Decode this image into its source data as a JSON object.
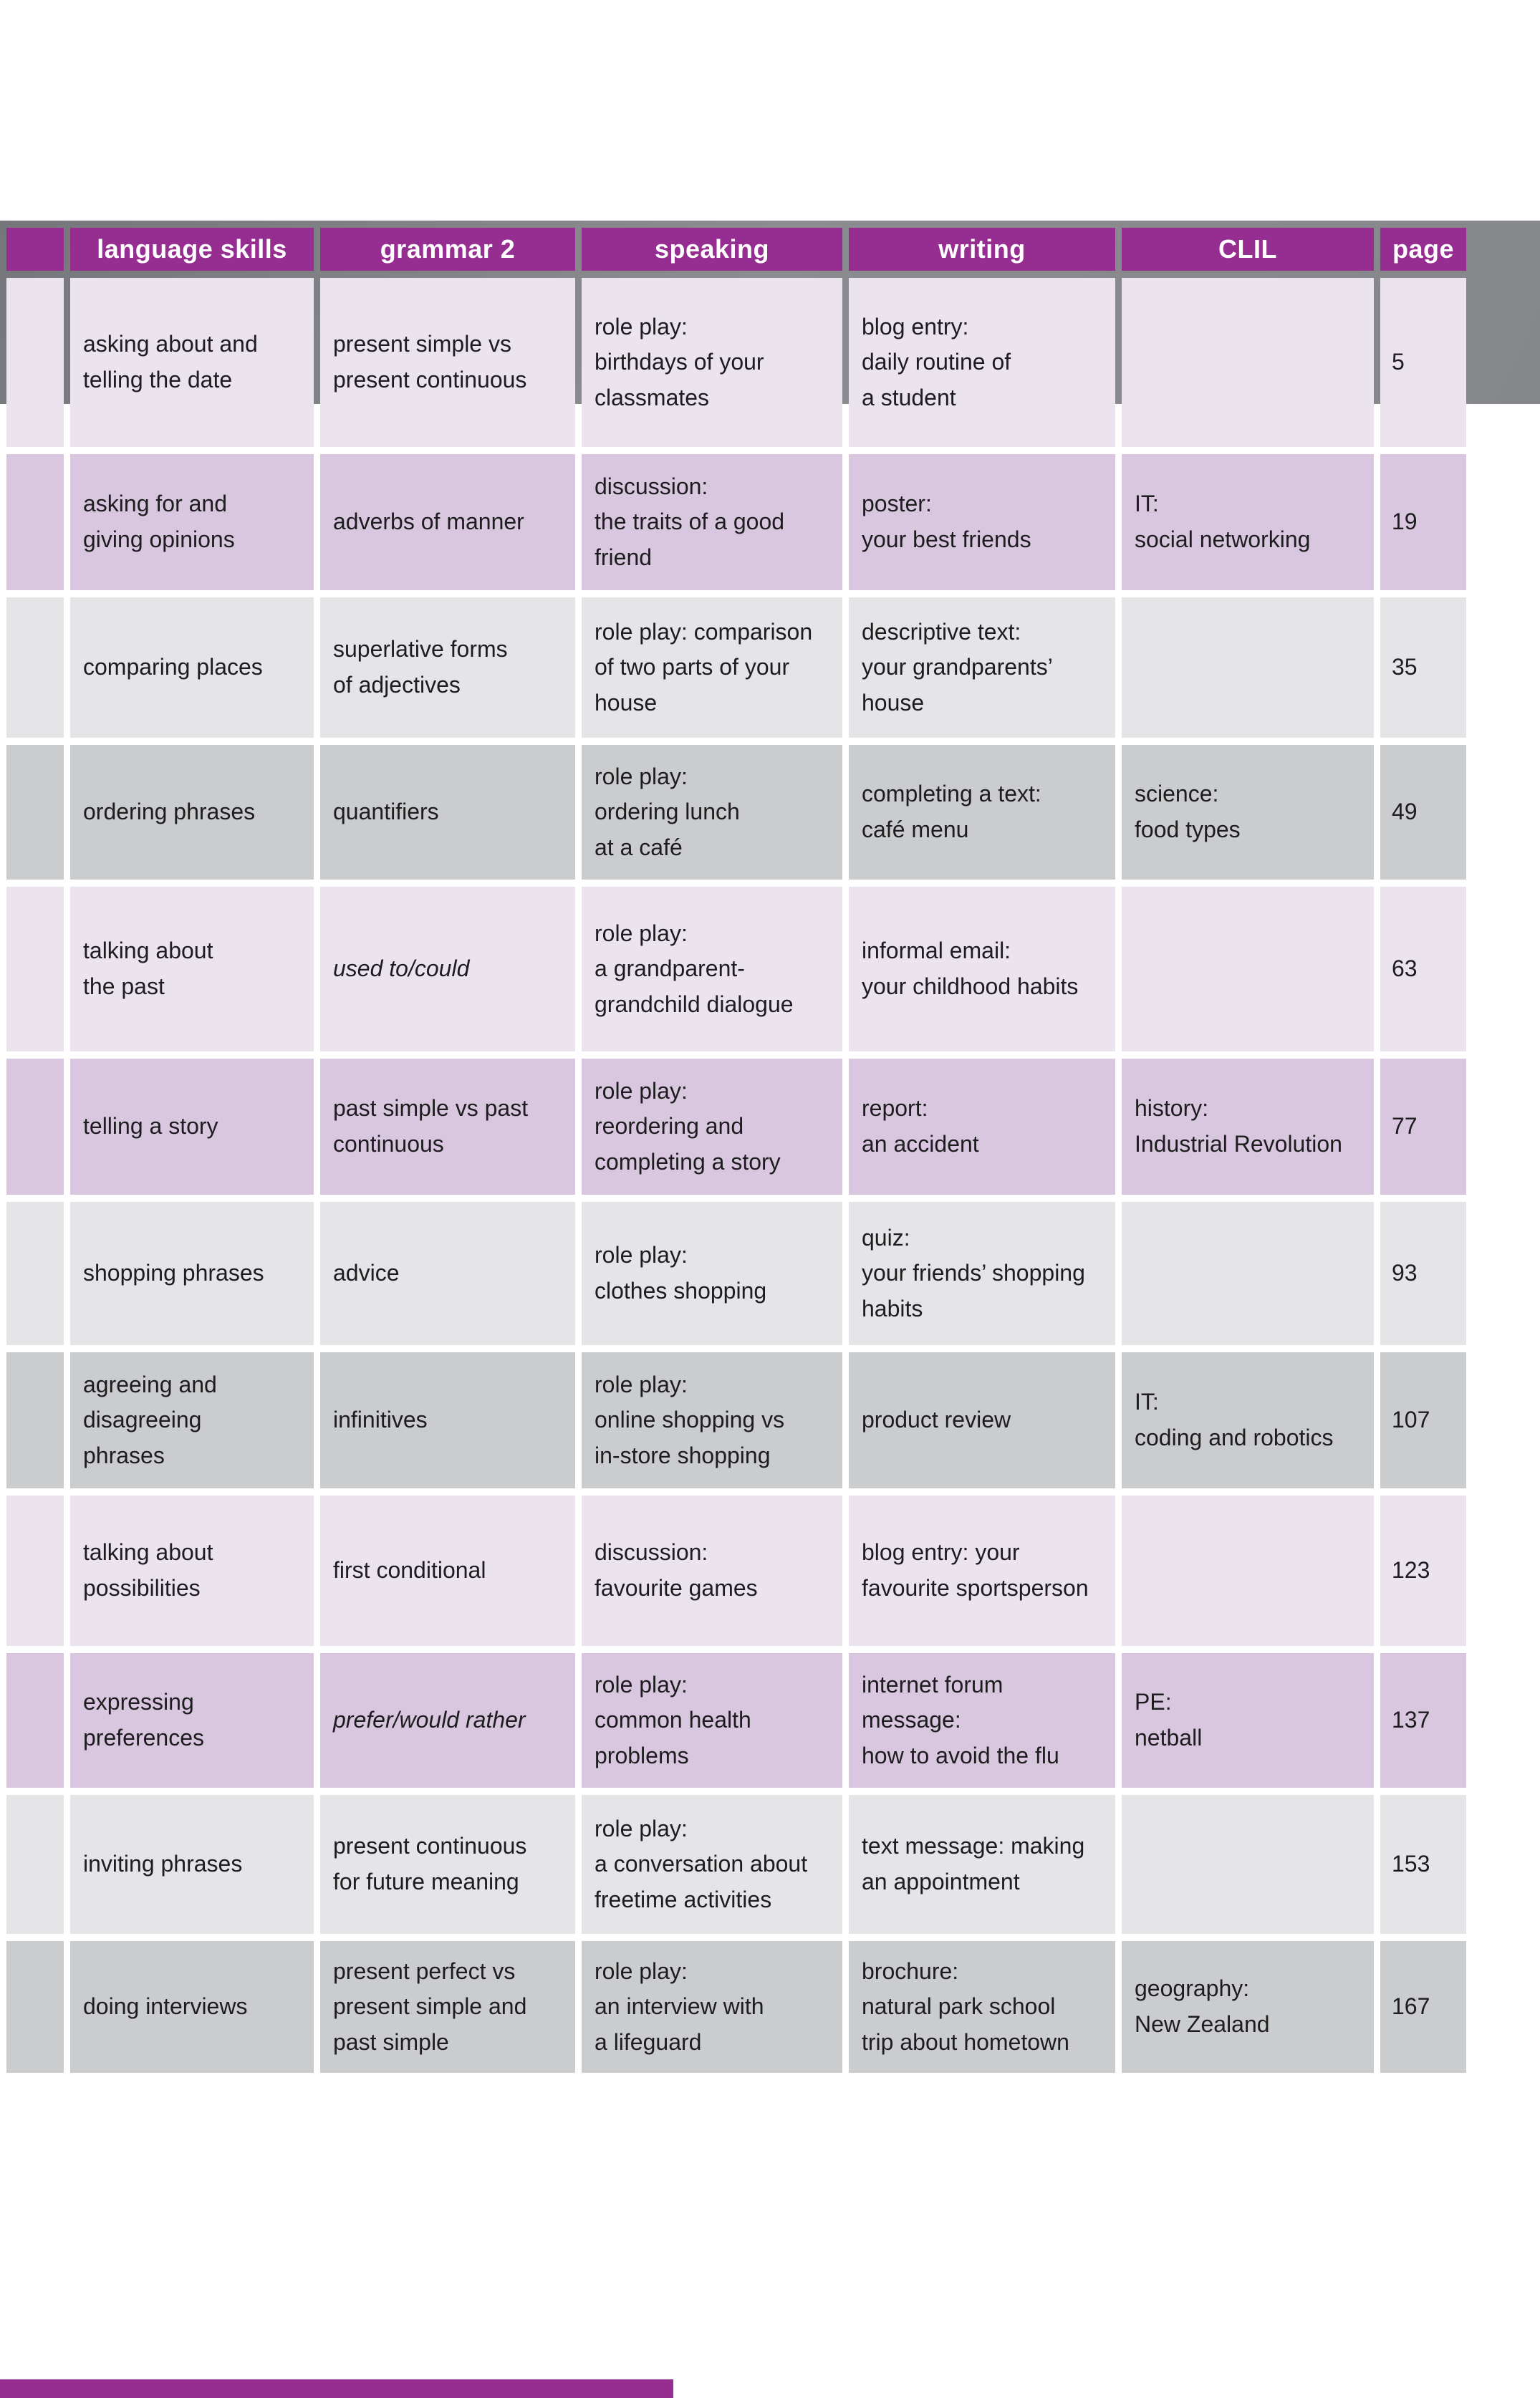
{
  "colors": {
    "header_bg": "#962d90",
    "header_text": "#ffffff",
    "row_lavender_light": "#ebe3ee",
    "row_lavender_dark": "#d9c7e0",
    "row_gray_light": "#e5e5e7",
    "row_gray_dark": "#cbcccd",
    "banner_gray": "#85878b",
    "accent_bar": "#962d90",
    "cell_text": "#1d1d1f"
  },
  "header": {
    "columns": [
      "language skills",
      "grammar 2",
      "speaking",
      "writing",
      "CLIL",
      "page"
    ]
  },
  "rows": [
    {
      "language_skills": "asking about and\ntelling the date",
      "grammar_2": "present simple vs\npresent continuous",
      "grammar_2_italic": false,
      "speaking": "role play:\nbirthdays of your\nclassmates",
      "writing": "blog entry:\ndaily routine of\na student",
      "clil": "",
      "page": "5"
    },
    {
      "language_skills": "asking for and\ngiving opinions",
      "grammar_2": "adverbs of manner",
      "grammar_2_italic": false,
      "speaking": "discussion:\nthe traits of a good\nfriend",
      "writing": "poster:\nyour best friends",
      "clil": "IT:\nsocial networking",
      "page": "19"
    },
    {
      "language_skills": "comparing places",
      "grammar_2": "superlative forms\nof adjectives",
      "grammar_2_italic": false,
      "speaking": "role play: comparison\nof two parts of your\nhouse",
      "writing": "descriptive text:\nyour grandparents’\nhouse",
      "clil": "",
      "page": "35"
    },
    {
      "language_skills": "ordering phrases",
      "grammar_2": "quantifiers",
      "grammar_2_italic": false,
      "speaking": "role play:\nordering lunch\nat a café",
      "writing": "completing a text:\ncafé menu",
      "clil": "science:\nfood types",
      "page": "49"
    },
    {
      "language_skills": "talking about\nthe past",
      "grammar_2": "used to/could",
      "grammar_2_italic": true,
      "speaking": "role play:\na grandparent-\ngrandchild dialogue",
      "writing": "informal email:\nyour childhood habits",
      "clil": "",
      "page": "63"
    },
    {
      "language_skills": "telling a story",
      "grammar_2": "past simple vs past\ncontinuous",
      "grammar_2_italic": false,
      "speaking": "role play:\nreordering and\ncompleting a story",
      "writing": "report:\nan accident",
      "clil": "history:\nIndustrial Revolution",
      "page": "77"
    },
    {
      "language_skills": "shopping phrases",
      "grammar_2": "advice",
      "grammar_2_italic": false,
      "speaking": "role play:\nclothes shopping",
      "writing": "quiz:\nyour friends’ shopping\nhabits",
      "clil": "",
      "page": "93"
    },
    {
      "language_skills": "agreeing and\ndisagreeing\nphrases",
      "grammar_2": "infinitives",
      "grammar_2_italic": false,
      "speaking": "role play:\nonline shopping vs\nin-store shopping",
      "writing": "product review",
      "clil": "IT:\ncoding and robotics",
      "page": "107"
    },
    {
      "language_skills": "talking about\npossibilities",
      "grammar_2": "first conditional",
      "grammar_2_italic": false,
      "speaking": "discussion:\nfavourite games",
      "writing": "blog entry: your\nfavourite sportsperson",
      "clil": "",
      "page": "123"
    },
    {
      "language_skills": "expressing\npreferences",
      "grammar_2": "prefer/would rather",
      "grammar_2_italic": true,
      "speaking": "role play:\ncommon health\nproblems",
      "writing": "internet forum\nmessage:\nhow to avoid the flu",
      "clil": "PE:\nnetball",
      "page": "137"
    },
    {
      "language_skills": "inviting phrases",
      "grammar_2": "present continuous\nfor future meaning",
      "grammar_2_italic": false,
      "speaking": "role play:\na conversation about\nfreetime activities",
      "writing": "text message: making\nan appointment",
      "clil": "",
      "page": "153"
    },
    {
      "language_skills": "doing interviews",
      "grammar_2": "present perfect vs\npresent simple and\npast simple",
      "grammar_2_italic": false,
      "speaking": "role play:\nan interview with\na lifeguard",
      "writing": "brochure:\nnatural park school\ntrip about hometown",
      "clil": "geography:\nNew Zealand",
      "page": "167"
    }
  ]
}
